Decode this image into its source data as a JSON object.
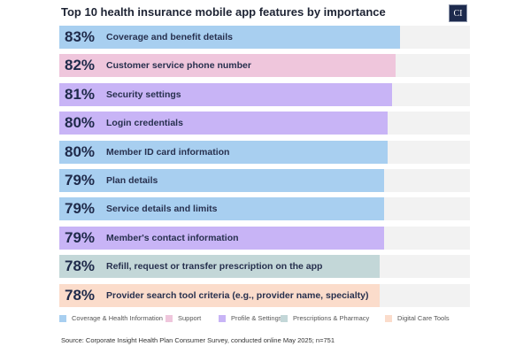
{
  "chart_data": {
    "type": "bar",
    "orientation": "horizontal",
    "title": "Top 10 health insurance mobile app features by importance",
    "xlim": [
      0,
      100
    ],
    "unit": "%",
    "categories": [
      "Coverage and benefit details",
      "Customer service phone number",
      "Security settings",
      "Login credentials",
      "Member ID card information",
      "Plan details",
      "Service details and limits",
      "Member's contact information",
      "Refill, request or transfer prescription on the app",
      "Provider search tool criteria (e.g., provider name, specialty)"
    ],
    "values": [
      83,
      82,
      81,
      80,
      80,
      79,
      79,
      79,
      78,
      78
    ],
    "value_labels": [
      "83%",
      "82%",
      "81%",
      "80%",
      "80%",
      "79%",
      "79%",
      "79%",
      "78%",
      "78%"
    ],
    "groups": [
      0,
      1,
      2,
      2,
      0,
      0,
      0,
      2,
      3,
      4
    ],
    "legend": [
      {
        "name": "Coverage & Health Information",
        "color": "#a8cff0"
      },
      {
        "name": "Support",
        "color": "#efc6dc"
      },
      {
        "name": "Profile & Settings",
        "color": "#c8b4f6"
      },
      {
        "name": "Prescriptions & Pharmacy",
        "color": "#c3d7d8"
      },
      {
        "name": "Digital Care Tools",
        "color": "#fbdccb"
      }
    ],
    "legend_position": "bottom",
    "source": "Source: Corporate Insight Health Plan Consumer Survey, conducted online May 2025; n=751"
  },
  "logo_text": "CI",
  "track_color": "#f2f2f2"
}
